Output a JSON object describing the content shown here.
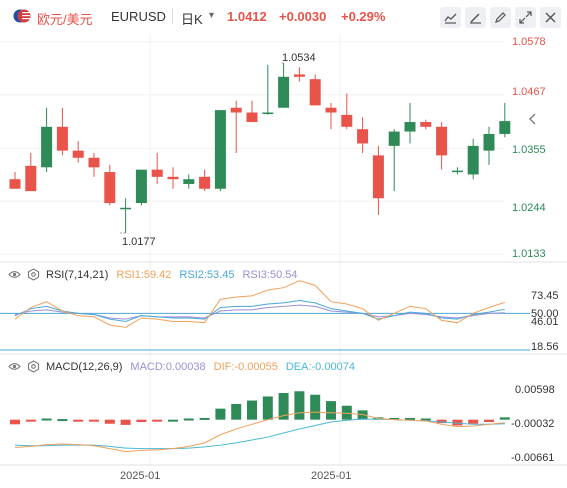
{
  "header": {
    "pair_cn": "欧元/美元",
    "pair_code": "EURUSD",
    "timeframe": "日K",
    "price": "1.0412",
    "change": "+0.0030",
    "change_pct": "+0.29%"
  },
  "toolbar": {
    "icons": [
      "line-chart-icon",
      "draw-icon",
      "pencil-icon",
      "fullscreen-icon",
      "close-icon"
    ]
  },
  "colors": {
    "up": "#e8534a",
    "down": "#2e8b57",
    "rsi1": "#f0a15a",
    "rsi2": "#4aa8d8",
    "rsi3": "#9b8fd6",
    "dif": "#f0a15a",
    "dea": "#4ab8d8"
  },
  "price_axis": [
    "1.0578",
    "1.0467",
    "1.0355",
    "1.0244",
    "1.0133"
  ],
  "annotations": {
    "high": "1.0534",
    "low": "1.0177"
  },
  "rsi": {
    "title": "RSI(7,14,21)",
    "rsi1": "RSI1:59.42",
    "rsi2": "RSI2:53.45",
    "rsi3": "RSI3:50.54",
    "axis": [
      "73.45",
      "50.00",
      "46.01",
      "18.56"
    ]
  },
  "macd": {
    "title": "MACD(12,26,9)",
    "macd": "MACD:0.00038",
    "dif": "DIF:-0.00055",
    "dea": "DEA:-0.00074",
    "axis": [
      "0.00598",
      "-0.00032",
      "-0.00661"
    ]
  },
  "x_axis": [
    "2025-01",
    "2025-01"
  ],
  "chart_data": {
    "type": "candlestick",
    "ohlc": [
      [
        1.029,
        1.0305,
        1.027,
        1.027
      ],
      [
        1.0318,
        1.0345,
        1.0265,
        1.0265
      ],
      [
        1.0315,
        1.044,
        1.0305,
        1.04
      ],
      [
        1.04,
        1.044,
        1.034,
        1.035
      ],
      [
        1.035,
        1.037,
        1.0325,
        1.0335
      ],
      [
        1.0335,
        1.0345,
        1.0295,
        1.0315
      ],
      [
        1.0305,
        1.032,
        1.0235,
        1.024
      ],
      [
        1.023,
        1.025,
        1.0177,
        1.023
      ],
      [
        1.024,
        1.031,
        1.0235,
        1.031
      ],
      [
        1.031,
        1.0345,
        1.028,
        1.0295
      ],
      [
        1.0295,
        1.0315,
        1.027,
        1.029
      ],
      [
        1.028,
        1.03,
        1.027,
        1.029
      ],
      [
        1.0295,
        1.031,
        1.0265,
        1.027
      ],
      [
        1.027,
        1.0435,
        1.0265,
        1.0435
      ],
      [
        1.044,
        1.0455,
        1.0345,
        1.043
      ],
      [
        1.043,
        1.0455,
        1.041,
        1.041
      ],
      [
        1.043,
        1.053,
        1.0425,
        1.043
      ],
      [
        1.044,
        1.0534,
        1.044,
        1.0505
      ],
      [
        1.051,
        1.0525,
        1.0495,
        1.0505
      ],
      [
        1.05,
        1.051,
        1.0445,
        1.0445
      ],
      [
        1.044,
        1.045,
        1.0395,
        1.043
      ],
      [
        1.0425,
        1.047,
        1.0395,
        1.04
      ],
      [
        1.0395,
        1.042,
        1.0345,
        1.0365
      ],
      [
        1.034,
        1.036,
        1.0215,
        1.025
      ],
      [
        1.036,
        1.0395,
        1.0265,
        1.039
      ],
      [
        1.039,
        1.045,
        1.0365,
        1.041
      ],
      [
        1.041,
        1.0415,
        1.0395,
        1.04
      ],
      [
        1.04,
        1.041,
        1.031,
        1.034
      ],
      [
        1.0305,
        1.0315,
        1.03,
        1.0308
      ],
      [
        1.03,
        1.0375,
        1.029,
        1.036
      ],
      [
        1.035,
        1.04,
        1.032,
        1.0385
      ],
      [
        1.0385,
        1.045,
        1.0378,
        1.0412
      ]
    ],
    "y_range": [
      1.0133,
      1.0578
    ],
    "rsi_range": [
      18.56,
      73.45
    ],
    "rsi1": [
      45,
      55,
      60,
      52,
      48,
      47,
      40,
      38,
      46,
      45,
      43,
      43,
      42,
      62,
      64,
      65,
      70,
      72,
      78,
      74,
      60,
      58,
      54,
      44,
      50,
      56,
      54,
      44,
      42,
      50,
      55,
      59.42
    ],
    "rsi2": [
      48,
      54,
      56,
      52,
      50,
      49,
      45,
      43,
      48,
      47,
      46,
      46,
      45,
      55,
      56,
      56,
      58,
      59,
      61,
      59,
      54,
      52,
      50,
      45,
      48,
      51,
      50,
      46,
      45,
      49,
      51,
      53.45
    ],
    "rsi3": [
      49,
      52,
      53,
      51,
      50,
      49,
      46,
      45,
      48,
      47,
      47,
      47,
      46,
      52,
      53,
      53,
      55,
      56,
      57,
      56,
      52,
      51,
      50,
      47,
      48,
      50,
      49,
      47,
      46,
      48,
      50,
      50.54
    ],
    "macd_range": [
      -0.00661,
      0.00598
    ],
    "macd_hist": [
      -0.0008,
      -0.0003,
      0.0002,
      0.0001,
      -0.0001,
      -0.0003,
      -0.0007,
      -0.0009,
      -0.0004,
      -0.0002,
      0.0,
      0.0002,
      0.0003,
      0.0019,
      0.0027,
      0.0033,
      0.004,
      0.0046,
      0.0049,
      0.0043,
      0.0032,
      0.0024,
      0.0016,
      0.0004,
      0.0003,
      0.0003,
      0.0002,
      -0.0006,
      -0.001,
      -0.0007,
      -0.0004,
      0.0004
    ],
    "dif": [
      -0.0048,
      -0.0046,
      -0.0043,
      -0.0042,
      -0.0043,
      -0.0045,
      -0.005,
      -0.0055,
      -0.0053,
      -0.0052,
      -0.005,
      -0.0046,
      -0.004,
      -0.0026,
      -0.0016,
      -0.0008,
      0.0,
      0.0007,
      0.0012,
      0.0013,
      0.0012,
      0.0011,
      0.0009,
      0.0002,
      0.0,
      -0.0001,
      -0.0002,
      -0.0008,
      -0.0012,
      -0.0011,
      -0.0008,
      -0.0005
    ],
    "dea": [
      -0.0044,
      -0.0045,
      -0.0045,
      -0.0044,
      -0.0044,
      -0.0044,
      -0.0046,
      -0.0049,
      -0.005,
      -0.005,
      -0.005,
      -0.0049,
      -0.0047,
      -0.0044,
      -0.004,
      -0.0035,
      -0.003,
      -0.0023,
      -0.0016,
      -0.001,
      -0.0004,
      -0.0001,
      0.0001,
      0.0001,
      0.0,
      -0.0001,
      -0.0002,
      -0.0004,
      -0.0006,
      -0.0008,
      -0.0008,
      -0.0007
    ]
  }
}
